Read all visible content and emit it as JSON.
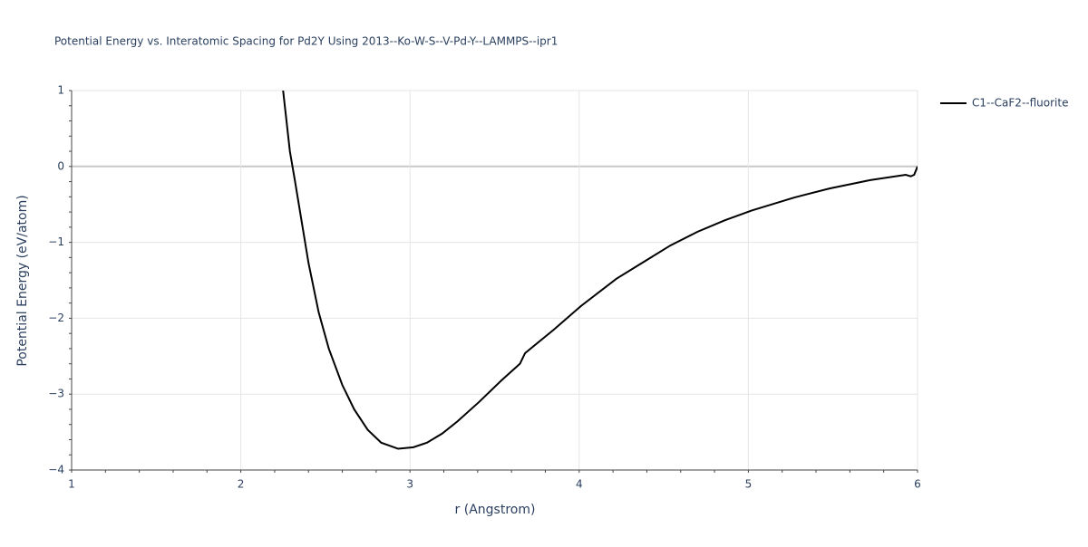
{
  "chart_data": {
    "type": "line",
    "title": "Potential Energy vs. Interatomic Spacing for Pd2Y Using 2013--Ko-W-S--V-Pd-Y--LAMMPS--ipr1",
    "x_label": "r (Angstrom)",
    "y_label": "Potential Energy (eV/atom)",
    "xlim": [
      1,
      6
    ],
    "ylim": [
      -4,
      1
    ],
    "xticks": [
      1,
      2,
      3,
      4,
      5,
      6
    ],
    "yticks": [
      1,
      0,
      {
        "value": -1,
        "label": "−1"
      },
      {
        "value": -2,
        "label": "−2"
      },
      {
        "value": -3,
        "label": "−3"
      },
      {
        "value": -4,
        "label": "−4"
      }
    ],
    "grid": true,
    "series": [
      {
        "name": "C1--CaF2--fluorite",
        "color": "#000000",
        "x": [
          2.25,
          2.29,
          2.32,
          2.4,
          2.46,
          2.52,
          2.6,
          2.67,
          2.75,
          2.83,
          2.93,
          3.02,
          3.1,
          3.19,
          3.28,
          3.41,
          3.54,
          3.65,
          3.68,
          3.85,
          4.01,
          4.22,
          4.38,
          4.54,
          4.7,
          4.86,
          5.02,
          5.27,
          5.48,
          5.72,
          5.93,
          5.96,
          5.98,
          6.0
        ],
        "values": [
          1,
          0.2,
          -0.19,
          -1.27,
          -1.92,
          -2.4,
          -2.88,
          -3.2,
          -3.47,
          -3.64,
          -3.72,
          -3.7,
          -3.64,
          -3.52,
          -3.36,
          -3.1,
          -2.82,
          -2.6,
          -2.46,
          -2.15,
          -1.84,
          -1.48,
          -1.26,
          -1.04,
          -0.86,
          -0.71,
          -0.58,
          -0.41,
          -0.29,
          -0.18,
          -0.11,
          -0.13,
          -0.11,
          0.0
        ]
      }
    ]
  }
}
